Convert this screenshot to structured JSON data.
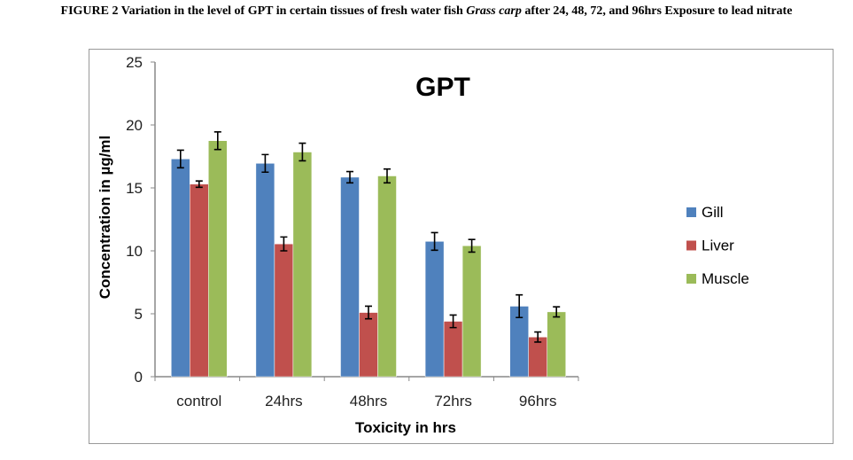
{
  "caption": {
    "prefix": "FIGURE 2 Variation in the level of GPT in certain tissues of fresh water fish ",
    "species": "Grass carp",
    "suffix": " after 24, 48, 72, and 96hrs Exposure to lead nitrate"
  },
  "chart_data": {
    "type": "bar",
    "title": "GPT",
    "xlabel": "Toxicity in hrs",
    "ylabel": "Concentration in µg/ml",
    "categories": [
      "control",
      "24hrs",
      "48hrs",
      "72hrs",
      "96hrs"
    ],
    "ylim": [
      0,
      25
    ],
    "yticks": [
      0,
      5,
      10,
      15,
      20,
      25
    ],
    "legend_position": "right",
    "series": [
      {
        "name": "Gill",
        "color": "#4f81bd",
        "values": [
          17.3,
          16.95,
          15.85,
          10.75,
          5.6
        ],
        "errors": [
          0.7,
          0.7,
          0.45,
          0.7,
          0.9
        ]
      },
      {
        "name": "Liver",
        "color": "#c0504d",
        "values": [
          15.3,
          10.55,
          5.1,
          4.4,
          3.15
        ],
        "errors": [
          0.25,
          0.55,
          0.5,
          0.5,
          0.4
        ]
      },
      {
        "name": "Muscle",
        "color": "#9bbb59",
        "values": [
          18.75,
          17.85,
          15.95,
          10.4,
          5.15
        ],
        "errors": [
          0.7,
          0.7,
          0.55,
          0.5,
          0.4
        ]
      }
    ]
  }
}
